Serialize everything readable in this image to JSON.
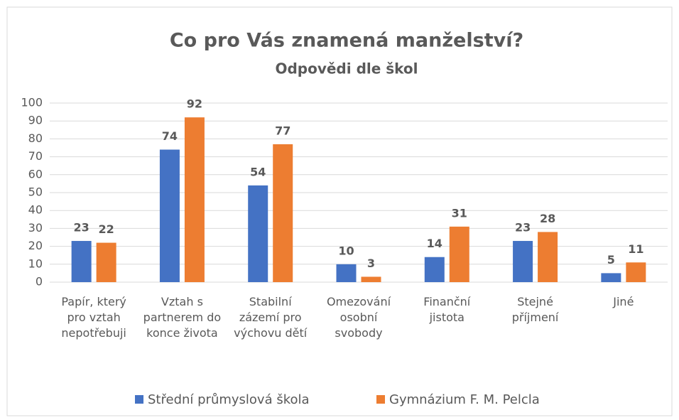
{
  "chart_data": {
    "type": "bar",
    "title": "Co pro Vás znamená manželství?",
    "subtitle": "Odpovědi dle škol",
    "categories": [
      "Papír, který pro vztah nepotřebuji",
      "Vztah s partnerem do konce života",
      "Stabilní zázemí pro výchovu dětí",
      "Omezování osobní svobody",
      "Finanční jistota",
      "Stejné příjmení",
      "Jiné"
    ],
    "series": [
      {
        "name": "Střední průmyslová škola",
        "color": "#4472c4",
        "values": [
          23,
          74,
          54,
          10,
          14,
          23,
          5
        ]
      },
      {
        "name": "Gymnázium F. M. Pelcla",
        "color": "#ed7d31",
        "values": [
          22,
          92,
          77,
          3,
          31,
          28,
          11
        ]
      }
    ],
    "ylim": [
      0,
      100
    ],
    "yticks": [
      0,
      10,
      20,
      30,
      40,
      50,
      60,
      70,
      80,
      90,
      100
    ],
    "grid": true,
    "legend": "bottom"
  }
}
